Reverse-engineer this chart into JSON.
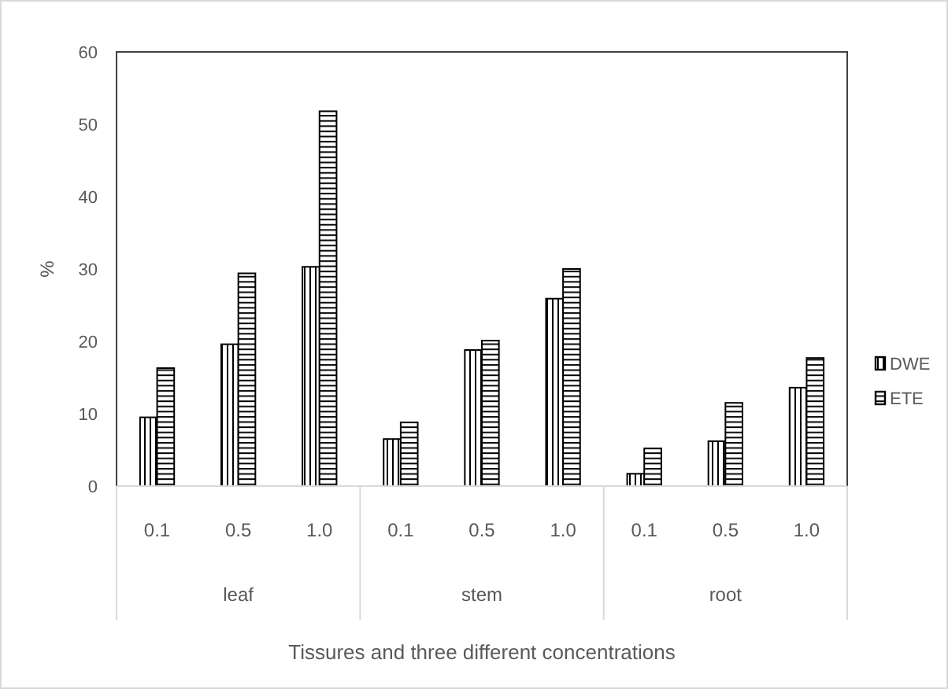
{
  "chart_data": {
    "type": "bar",
    "xlabel": "Tissures and three different concentrations",
    "ylabel": "%",
    "categories": [
      "0.1",
      "0.5",
      "1.0",
      "0.1",
      "0.5",
      "1.0",
      "0.1",
      "0.5",
      "1.0"
    ],
    "series": [
      {
        "name": "DWE",
        "color": "#000000",
        "values": [
          9.5,
          19.6,
          30.3,
          6.5,
          18.8,
          25.9,
          1.7,
          6.2,
          13.6
        ]
      },
      {
        "name": "ETE",
        "color": "#000000",
        "values": [
          16.3,
          29.4,
          51.8,
          8.8,
          20.1,
          30.0,
          5.2,
          11.5,
          17.7
        ]
      }
    ],
    "annotations": [
      "leaf",
      "stem",
      "root"
    ],
    "ylim": [
      0,
      60
    ],
    "yticks": [
      0,
      10,
      20,
      30,
      40,
      50,
      60
    ],
    "grid": false,
    "legend": "right"
  }
}
